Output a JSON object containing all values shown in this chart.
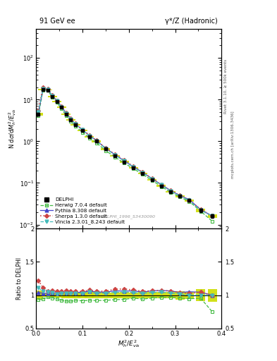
{
  "title_left": "91 GeV ee",
  "title_right": "γ*/Z (Hadronic)",
  "ylabel_main": "N dσ/dM²_h/E²_vis",
  "ylabel_ratio": "Ratio to DELPHI",
  "xlabel": "M²_h/E²_vis",
  "right_label_top": "Rivet 3.1.10, ≥ 500k events",
  "right_label_bottom": "mcplots.cern.ch [arXiv:1306.3436]",
  "watermark": "DELPHI_1996_S3430090",
  "x_data": [
    0.005,
    0.015,
    0.025,
    0.035,
    0.045,
    0.055,
    0.065,
    0.075,
    0.085,
    0.1,
    0.115,
    0.13,
    0.15,
    0.17,
    0.19,
    0.21,
    0.23,
    0.25,
    0.27,
    0.29,
    0.31,
    0.33,
    0.355,
    0.38
  ],
  "delphi_y": [
    4.5,
    17.5,
    17.0,
    12.0,
    9.0,
    6.5,
    4.5,
    3.3,
    2.5,
    1.8,
    1.3,
    1.0,
    0.65,
    0.45,
    0.32,
    0.23,
    0.17,
    0.12,
    0.085,
    0.062,
    0.048,
    0.038,
    0.022,
    0.016
  ],
  "delphi_err": [
    0.3,
    0.5,
    0.5,
    0.4,
    0.3,
    0.25,
    0.2,
    0.15,
    0.12,
    0.08,
    0.06,
    0.05,
    0.03,
    0.02,
    0.015,
    0.01,
    0.008,
    0.006,
    0.004,
    0.003,
    0.003,
    0.002,
    0.002,
    0.0015
  ],
  "herwig_y": [
    4.2,
    16.5,
    16.5,
    11.5,
    8.5,
    6.0,
    4.1,
    3.0,
    2.3,
    1.65,
    1.2,
    0.92,
    0.6,
    0.42,
    0.3,
    0.22,
    0.16,
    0.115,
    0.082,
    0.06,
    0.046,
    0.036,
    0.021,
    0.012
  ],
  "pythia_y": [
    4.7,
    18.0,
    17.5,
    12.5,
    9.3,
    6.8,
    4.7,
    3.45,
    2.6,
    1.88,
    1.38,
    1.05,
    0.68,
    0.48,
    0.34,
    0.245,
    0.178,
    0.128,
    0.091,
    0.066,
    0.05,
    0.04,
    0.023,
    0.016
  ],
  "sherpa_y": [
    5.5,
    19.5,
    18.0,
    12.8,
    9.5,
    6.9,
    4.8,
    3.5,
    2.65,
    1.9,
    1.4,
    1.06,
    0.69,
    0.49,
    0.35,
    0.248,
    0.18,
    0.128,
    0.091,
    0.066,
    0.05,
    0.039,
    0.023,
    0.016
  ],
  "vincia_y": [
    5.0,
    18.5,
    17.8,
    12.5,
    9.2,
    6.7,
    4.65,
    3.4,
    2.58,
    1.86,
    1.36,
    1.03,
    0.67,
    0.47,
    0.335,
    0.24,
    0.175,
    0.125,
    0.089,
    0.064,
    0.049,
    0.038,
    0.022,
    0.016
  ],
  "ylim_main": [
    0.008,
    500
  ],
  "ylim_ratio": [
    0.5,
    2.0
  ],
  "xlim": [
    0.0,
    0.4
  ],
  "herwig_color": "#44bb44",
  "pythia_color": "#4444cc",
  "sherpa_color": "#cc4444",
  "vincia_color": "#44bbbb",
  "delphi_color": "#000000",
  "band_color": "#ccdd00"
}
